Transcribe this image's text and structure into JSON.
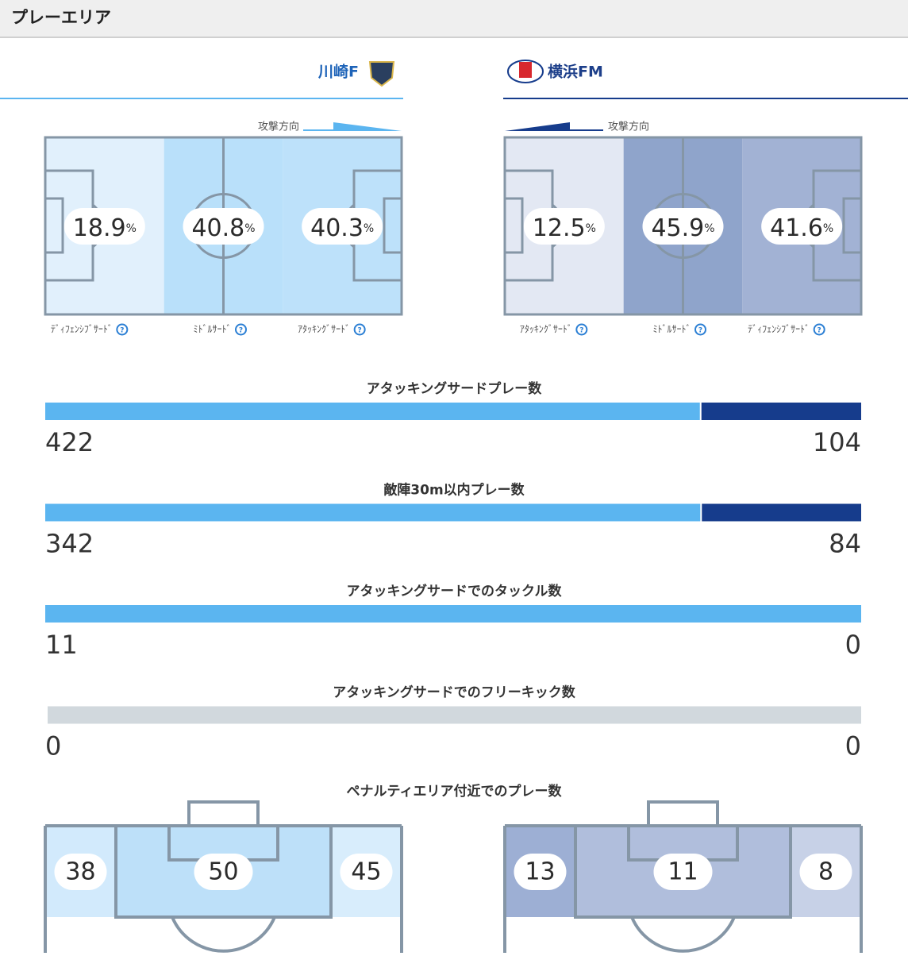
{
  "header": {
    "title": "プレーエリア"
  },
  "teams": [
    {
      "name": "川崎F",
      "color": "#5bb5f0"
    },
    {
      "name": "横浜FM",
      "color": "#163c8c"
    }
  ],
  "direction_label": "攻撃方向",
  "unit": "%",
  "zones": [
    {
      "labels": [
        "ﾃﾞｨﾌｪﾝｼﾌﾞｻｰﾄﾞ",
        "ﾐﾄﾞﾙｻｰﾄﾞ",
        "ｱﾀｯｷﾝｸﾞｻｰﾄﾞ"
      ],
      "values": [
        18.9,
        40.8,
        40.3
      ],
      "colors": [
        "#e1f0fc",
        "#b9e0fa",
        "#bde1fa"
      ]
    },
    {
      "labels": [
        "ｱﾀｯｷﾝｸﾞｻｰﾄﾞ",
        "ﾐﾄﾞﾙｻｰﾄﾞ",
        "ﾃﾞｨﾌｪﾝｼﾌﾞｻｰﾄﾞ"
      ],
      "values": [
        12.5,
        45.9,
        41.6
      ],
      "colors": [
        "#e3e8f3",
        "#8fa4cb",
        "#a2b2d4"
      ]
    }
  ],
  "comparisons": [
    {
      "label": "アタッキングサードプレー数",
      "values": [
        422,
        104
      ]
    },
    {
      "label": "敵陣30m以内プレー数",
      "values": [
        342,
        84
      ]
    },
    {
      "label": "アタッキングサードでのタックル数",
      "values": [
        11,
        0
      ]
    },
    {
      "label": "アタッキングサードでのフリーキック数",
      "values": [
        0,
        0
      ]
    }
  ],
  "penalty": {
    "title": "ペナルティエリア付近でのプレー数",
    "teams": [
      {
        "values": [
          38,
          50,
          45
        ],
        "colors": [
          "#d2eafc",
          "#bde0f9",
          "#d8edfc"
        ]
      },
      {
        "values": [
          13,
          11,
          8
        ],
        "colors": [
          "#9dafd4",
          "#b0bedc",
          "#c7d1e7"
        ]
      }
    ]
  }
}
